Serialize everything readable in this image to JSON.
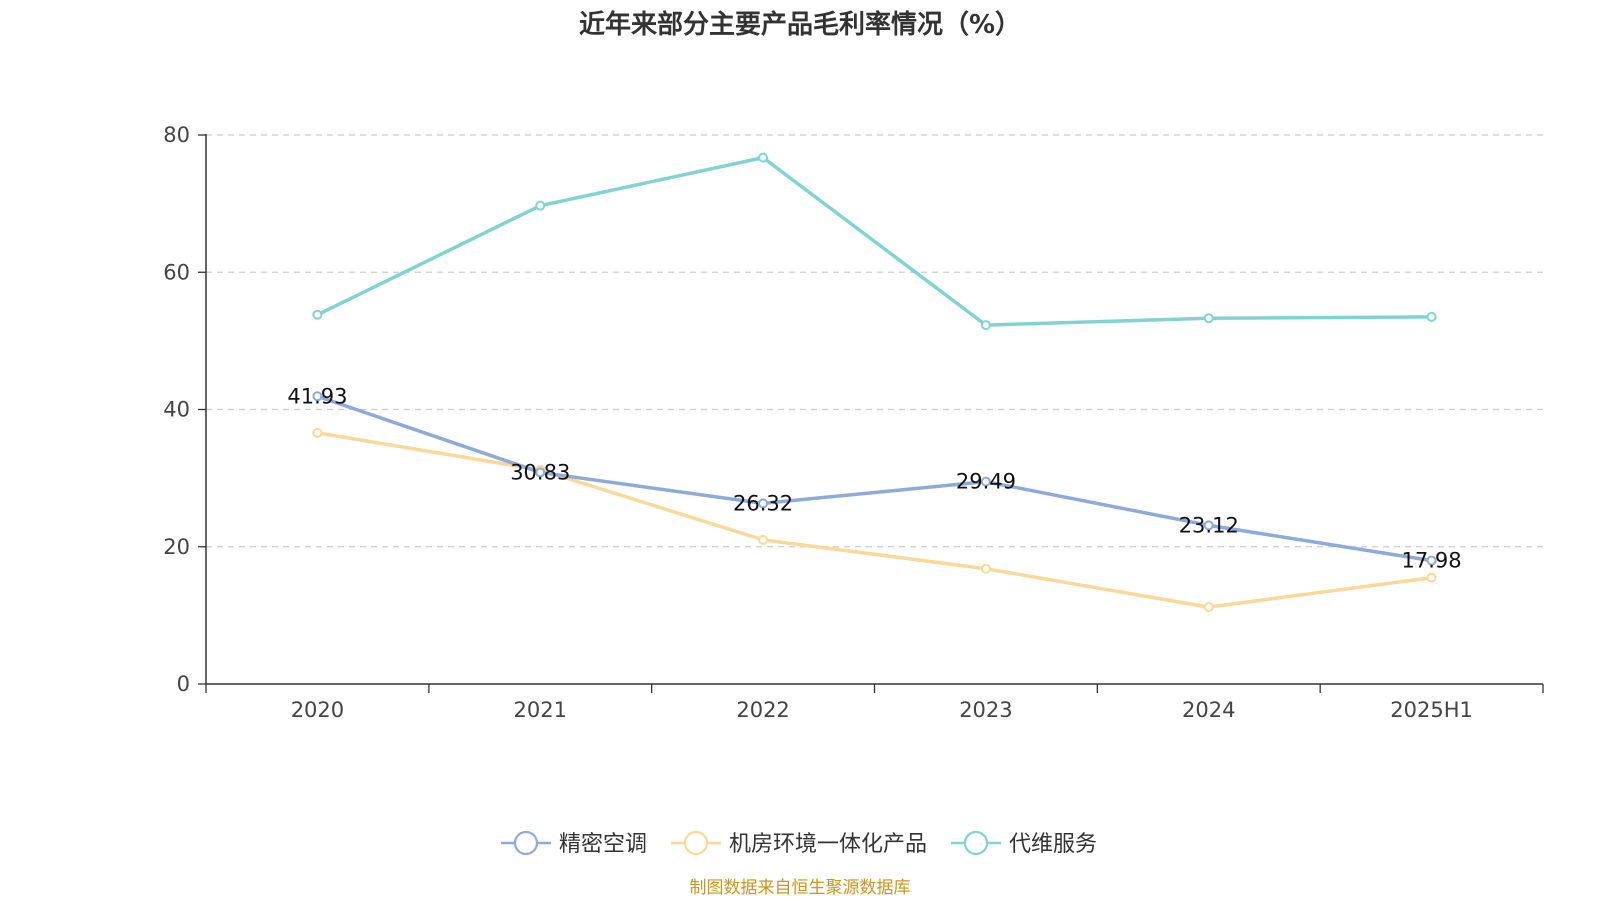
{
  "chart_data": {
    "type": "line",
    "title": "近年来部分主要产品毛利率情况（%）",
    "categories": [
      "2020",
      "2021",
      "2022",
      "2023",
      "2024",
      "2025H1"
    ],
    "ylim": [
      0,
      80
    ],
    "yticks": [
      0,
      20,
      40,
      60,
      80
    ],
    "grid": true,
    "legend_position": "bottom",
    "series": [
      {
        "name": "精密空调",
        "color": "#8eaad8",
        "values": [
          41.93,
          30.83,
          26.32,
          29.49,
          23.12,
          17.98
        ],
        "labels": [
          "41.93",
          "30.83",
          "26.32",
          "29.49",
          "23.12",
          "17.98"
        ]
      },
      {
        "name": "机房环境一体化产品",
        "color": "#f9d899",
        "values": [
          36.6,
          31.2,
          21.0,
          16.8,
          11.2,
          15.5
        ]
      },
      {
        "name": "代维服务",
        "color": "#82d2d2",
        "values": [
          53.8,
          69.7,
          76.7,
          52.3,
          53.3,
          53.5
        ]
      }
    ]
  },
  "source": "制图数据来自恒生聚源数据库"
}
